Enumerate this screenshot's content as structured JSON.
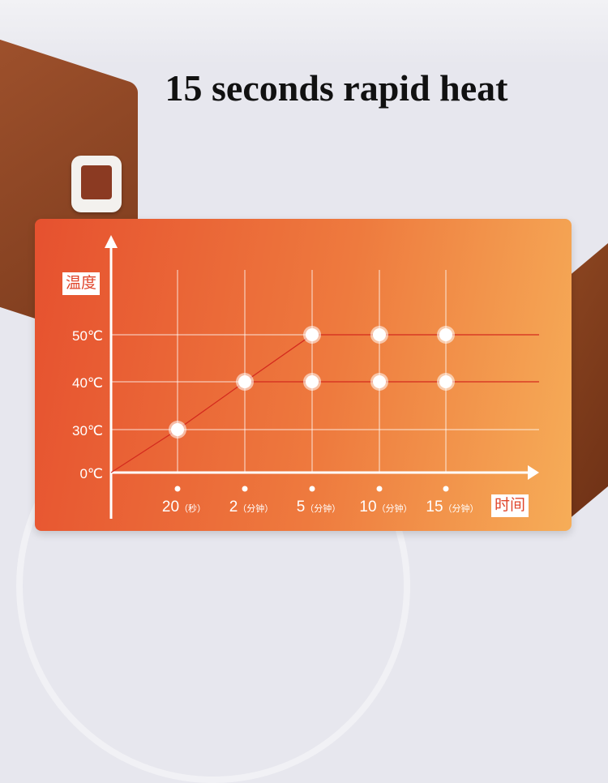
{
  "title": "15 seconds rapid heat",
  "chart_data": {
    "type": "line",
    "ylabel": "温度",
    "xlabel": "时间",
    "y_ticks": [
      {
        "value": 0,
        "label": "0℃"
      },
      {
        "value": 30,
        "label": "30℃"
      },
      {
        "value": 40,
        "label": "40℃"
      },
      {
        "value": 50,
        "label": "50℃"
      }
    ],
    "categories": [
      {
        "num": "20",
        "unit": "（秒）"
      },
      {
        "num": "2",
        "unit": "（分钟）"
      },
      {
        "num": "5",
        "unit": "（分钟）"
      },
      {
        "num": "10",
        "unit": "（分钟）"
      },
      {
        "num": "15",
        "unit": "（分钟）"
      }
    ],
    "series": [
      {
        "values": [
          30,
          40,
          50,
          50,
          50
        ],
        "starts_at_origin": true
      },
      {
        "values": [
          null,
          40,
          40,
          40,
          40
        ]
      }
    ],
    "grid": true,
    "colors": {
      "line": "#d42a1e",
      "grid": "#ffffff",
      "background_start": "#e6512f",
      "background_end": "#f6ad58"
    }
  }
}
